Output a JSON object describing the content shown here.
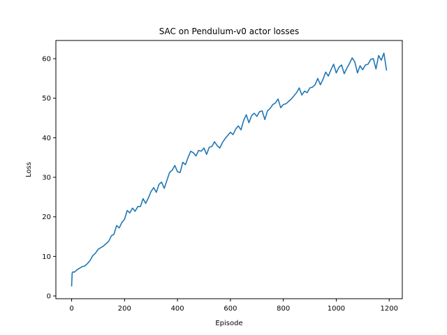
{
  "chart_data": {
    "type": "line",
    "title": "SAC on Pendulum-v0 actor losses",
    "xlabel": "Episode",
    "ylabel": "Loss",
    "xlim": [
      -59.5,
      1249.5
    ],
    "ylim": [
      -0.7,
      64.6
    ],
    "xticks": [
      0,
      200,
      400,
      600,
      800,
      1000,
      1200
    ],
    "yticks": [
      0,
      10,
      20,
      30,
      40,
      50,
      60
    ],
    "grid": false,
    "line_color": "#1f77b4",
    "series": [
      {
        "x": [
          0,
          2,
          5,
          10,
          20,
          30,
          40,
          50,
          60,
          70,
          80,
          90,
          100,
          120,
          140,
          150,
          160,
          170,
          180,
          190,
          200,
          210,
          220,
          230,
          240,
          250,
          260,
          270,
          280,
          290,
          300,
          310,
          320,
          330,
          340,
          350,
          360,
          370,
          380,
          390,
          400,
          410,
          420,
          430,
          440,
          450,
          460,
          470,
          480,
          490,
          500,
          510,
          520,
          530,
          540,
          550,
          560,
          570,
          580,
          590,
          600,
          610,
          620,
          630,
          640,
          650,
          660,
          670,
          680,
          690,
          700,
          710,
          720,
          730,
          740,
          750,
          760,
          770,
          780,
          790,
          800,
          810,
          820,
          830,
          840,
          850,
          860,
          870,
          880,
          890,
          900,
          910,
          920,
          930,
          940,
          950,
          960,
          970,
          980,
          990,
          1000,
          1010,
          1020,
          1030,
          1040,
          1050,
          1060,
          1070,
          1080,
          1090,
          1100,
          1110,
          1120,
          1130,
          1140,
          1150,
          1160,
          1170,
          1180,
          1190
        ],
        "y": [
          2.4,
          5.8,
          6.1,
          6.0,
          6.6,
          7.0,
          7.4,
          7.6,
          8.2,
          9.0,
          10.2,
          10.8,
          11.8,
          12.6,
          13.8,
          15.2,
          15.6,
          17.8,
          17.2,
          18.6,
          19.4,
          21.6,
          21.0,
          22.2,
          21.4,
          22.6,
          22.6,
          24.6,
          23.4,
          24.8,
          26.4,
          27.4,
          26.2,
          28.2,
          28.8,
          27.2,
          29.2,
          31.2,
          31.8,
          33.0,
          31.4,
          31.2,
          33.8,
          33.2,
          35.0,
          36.6,
          36.2,
          35.4,
          36.8,
          36.6,
          37.4,
          35.8,
          37.6,
          37.8,
          39.0,
          38.0,
          37.4,
          38.8,
          39.8,
          40.6,
          41.4,
          40.8,
          42.2,
          43.0,
          42.0,
          44.4,
          45.8,
          43.8,
          45.6,
          46.2,
          45.4,
          46.6,
          46.8,
          44.6,
          46.8,
          47.4,
          48.4,
          48.8,
          49.8,
          47.6,
          48.4,
          48.6,
          49.2,
          49.8,
          50.6,
          51.4,
          52.6,
          50.8,
          51.8,
          51.4,
          52.6,
          52.8,
          53.4,
          55.0,
          53.4,
          54.8,
          56.6,
          55.6,
          57.2,
          58.6,
          56.4,
          57.8,
          58.4,
          56.2,
          57.6,
          58.8,
          60.2,
          59.2,
          56.4,
          58.2,
          57.2,
          58.4,
          58.6,
          59.8,
          60.0,
          57.4,
          60.8,
          59.6,
          61.4,
          57.0
        ],
        "note": "values approximated from the plotted curve"
      }
    ]
  }
}
